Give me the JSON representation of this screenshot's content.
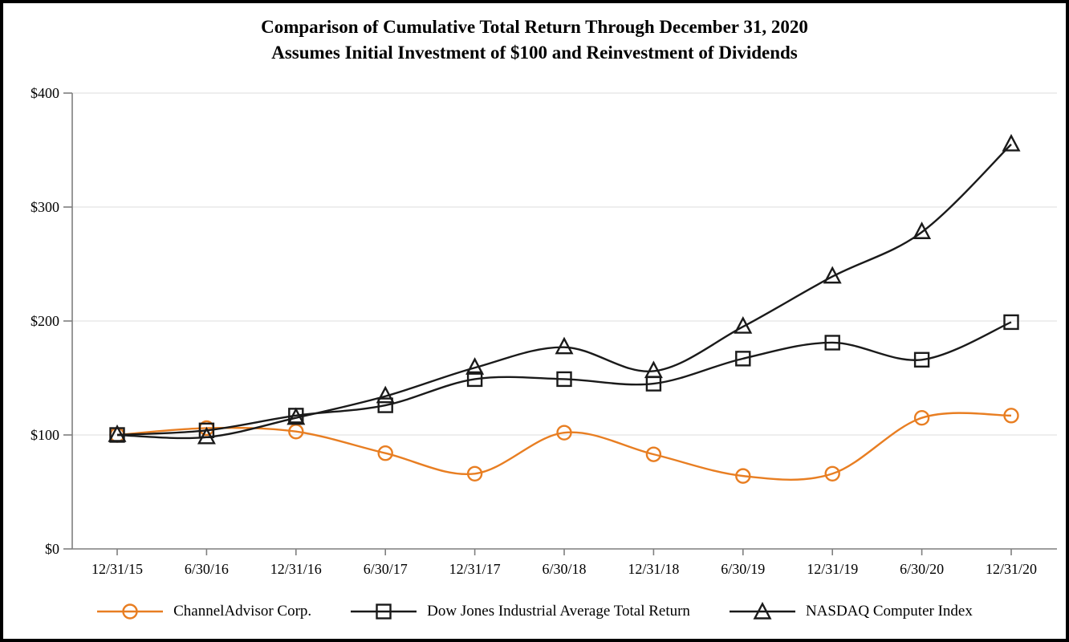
{
  "title": {
    "line1": "Comparison of Cumulative Total Return Through December 31, 2020",
    "line2": "Assumes Initial Investment of $100 and Reinvestment of Dividends"
  },
  "colors": {
    "accent_orange": "#E87E22",
    "series_black": "#1A1A1A",
    "axis_gray": "#7F7F7F",
    "gridline_gray": "#E4E4E4",
    "text_black": "#000000",
    "background": "#FFFFFF",
    "border_black": "#000000"
  },
  "y_axis": {
    "tick_labels": [
      "$400",
      "$300",
      "$200",
      "$100",
      "$0"
    ],
    "tick_values": [
      400,
      300,
      200,
      100,
      0
    ]
  },
  "x_axis": {
    "tick_labels": [
      "12/31/15",
      "6/30/16",
      "12/31/16",
      "6/30/17",
      "12/31/17",
      "6/30/18",
      "12/31/18",
      "6/30/19",
      "12/31/19",
      "6/30/20",
      "12/31/20"
    ]
  },
  "legend": {
    "items": [
      "ChannelAdvisor Corp.",
      "Dow Jones Industrial Average Total Return",
      "NASDAQ Computer Index"
    ]
  },
  "chart_data": {
    "type": "line",
    "title": "Comparison of Cumulative Total Return Through December 31, 2020",
    "subtitle": "Assumes Initial Investment of $100 and Reinvestment of Dividends",
    "categories": [
      "12/31/15",
      "6/30/16",
      "12/31/16",
      "6/30/17",
      "12/31/17",
      "6/30/18",
      "12/31/18",
      "6/30/19",
      "12/31/19",
      "6/30/20",
      "12/31/20"
    ],
    "series": [
      {
        "name": "ChannelAdvisor Corp.",
        "marker": "circle",
        "color": "#E87E22",
        "values": [
          100,
          106,
          103,
          84,
          66,
          102,
          83,
          64,
          66,
          115,
          117
        ]
      },
      {
        "name": "Dow Jones Industrial Average Total Return",
        "marker": "square",
        "color": "#1A1A1A",
        "values": [
          100,
          104,
          117,
          126,
          149,
          149,
          145,
          167,
          181,
          166,
          199
        ]
      },
      {
        "name": "NASDAQ Computer Index",
        "marker": "triangle",
        "color": "#1A1A1A",
        "values": [
          100,
          98,
          115,
          134,
          159,
          177,
          156,
          195,
          239,
          278,
          355
        ]
      }
    ],
    "xlabel": "",
    "ylabel": "",
    "ylim": [
      0,
      400
    ],
    "y_tick_step": 100,
    "grid": true,
    "line_style": "smooth",
    "markers_hollow": true,
    "legend_position": "bottom"
  }
}
